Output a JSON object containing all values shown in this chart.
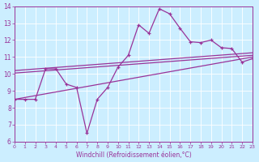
{
  "xlabel": "Windchill (Refroidissement éolien,°C)",
  "background_color": "#cceeff",
  "grid_color": "#aaddcc",
  "line_color": "#993399",
  "xlim": [
    0,
    23
  ],
  "ylim": [
    6,
    14
  ],
  "yticks": [
    6,
    7,
    8,
    9,
    10,
    11,
    12,
    13,
    14
  ],
  "xticks": [
    0,
    1,
    2,
    3,
    4,
    5,
    6,
    7,
    8,
    9,
    10,
    11,
    12,
    13,
    14,
    15,
    16,
    17,
    18,
    19,
    20,
    21,
    22,
    23
  ],
  "main_series": {
    "x": [
      0,
      1,
      2,
      3,
      4,
      5,
      6,
      7,
      8,
      9,
      10,
      11,
      12,
      13,
      14,
      15,
      16,
      17,
      18,
      19,
      20,
      21,
      22,
      23
    ],
    "y": [
      8.5,
      8.5,
      8.5,
      10.3,
      10.3,
      9.4,
      9.2,
      6.5,
      8.5,
      9.2,
      10.4,
      11.1,
      12.9,
      12.4,
      13.85,
      13.55,
      12.7,
      11.9,
      11.85,
      12.0,
      11.55,
      11.5,
      10.7,
      10.9
    ]
  },
  "trend_lower": {
    "x": [
      0,
      23
    ],
    "y": [
      8.5,
      11.0
    ]
  },
  "trend_mid1": {
    "x": [
      0,
      23
    ],
    "y": [
      10.05,
      11.1
    ]
  },
  "trend_mid2": {
    "x": [
      0,
      23
    ],
    "y": [
      10.2,
      11.25
    ]
  }
}
